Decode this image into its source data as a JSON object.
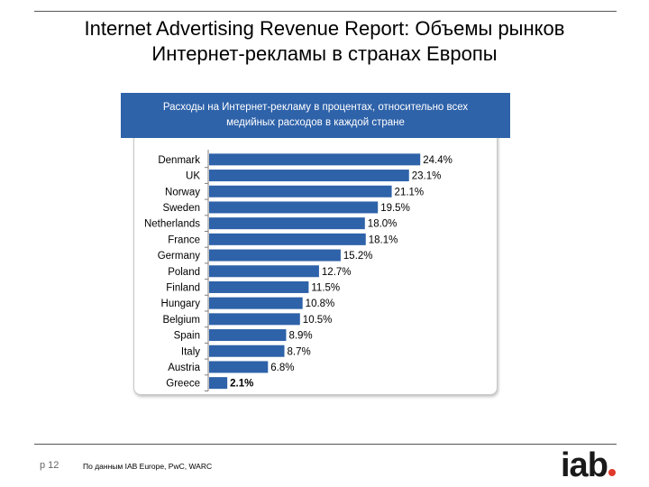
{
  "header": {
    "title_line1": "Internet Advertising Revenue Report: Объемы рынков",
    "title_line2": "Интернет-рекламы в странах Европы"
  },
  "chart_box": {
    "subtitle_line1": "Расходы на Интернет-рекламу в процентах, относительно всех",
    "subtitle_line2": "медийных расходов в каждой стране"
  },
  "colors": {
    "bar": "#2e62a9",
    "subtitle_bg": "#2e62a9",
    "logo_dot": "#e03a2c"
  },
  "chart_data": {
    "type": "bar",
    "orientation": "horizontal",
    "title": "Расходы на Интернет-рекламу в процентах, относительно всех медийных расходов в каждой стране",
    "categories": [
      "Denmark",
      "UK",
      "Norway",
      "Sweden",
      "Netherlands",
      "France",
      "Germany",
      "Poland",
      "Finland",
      "Hungary",
      "Belgium",
      "Spain",
      "Italy",
      "Austria",
      "Greece"
    ],
    "values": [
      24.4,
      23.1,
      21.1,
      19.5,
      18.0,
      18.1,
      15.2,
      12.7,
      11.5,
      10.8,
      10.5,
      8.9,
      8.7,
      6.8,
      2.1
    ],
    "labels": [
      "24.4%",
      "23.1%",
      "21.1%",
      "19.5%",
      "18.0%",
      "18.1%",
      "15.2%",
      "12.7%",
      "11.5%",
      "10.8%",
      "10.5%",
      "8.9%",
      "8.7%",
      "6.8%",
      "2.1%"
    ],
    "unit": "%",
    "xlim": [
      0,
      25
    ],
    "grid": false,
    "legend": "none"
  },
  "footer": {
    "page": "p 12",
    "source": "По данным IAB Europe, PwC, WARC",
    "logo_text": "iab"
  }
}
